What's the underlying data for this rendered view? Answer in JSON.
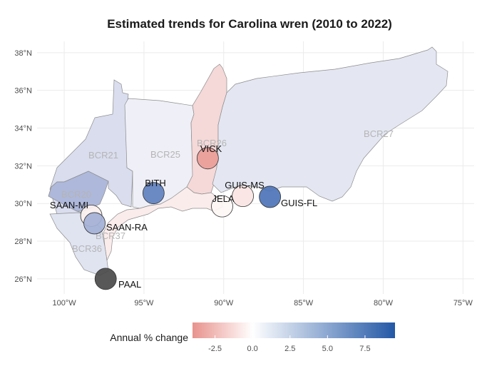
{
  "title": "Estimated trends for Carolina wren (2010 to 2022)",
  "map": {
    "lon_ticks": [
      {
        "value": -100,
        "label": "100°W"
      },
      {
        "value": -95,
        "label": "95°W"
      },
      {
        "value": -90,
        "label": "90°W"
      },
      {
        "value": -85,
        "label": "85°W"
      },
      {
        "value": -80,
        "label": "80°W"
      },
      {
        "value": -75,
        "label": "75°W"
      }
    ],
    "lat_ticks": [
      {
        "value": 26,
        "label": "26°N"
      },
      {
        "value": 28,
        "label": "28°N"
      },
      {
        "value": 30,
        "label": "30°N"
      },
      {
        "value": 32,
        "label": "32°N"
      },
      {
        "value": 34,
        "label": "34°N"
      },
      {
        "value": 36,
        "label": "36°N"
      },
      {
        "value": 38,
        "label": "38°N"
      }
    ],
    "regions": [
      {
        "id": "BCR21",
        "label": "BCR21",
        "color": "#d9ddee"
      },
      {
        "id": "BCR25",
        "label": "BCR25",
        "color": "#eff0f7"
      },
      {
        "id": "BCR26",
        "label": "BCR26",
        "color": "#f5d8d8"
      },
      {
        "id": "BCR27",
        "label": "BCR27",
        "color": "#e4e7f2"
      },
      {
        "id": "BCR20",
        "label": "BCR20",
        "color": "#aeb8da"
      },
      {
        "id": "BCR37",
        "label": "BCR37",
        "color": "#fbecec"
      },
      {
        "id": "BCR36",
        "label": "BCR36",
        "color": "#e0e4f1"
      }
    ],
    "sites": [
      {
        "id": "VICK",
        "label": "VICK",
        "lon": -91.0,
        "lat": 32.4,
        "trend": -2.0,
        "color": "#e99d98"
      },
      {
        "id": "BITH",
        "label": "BITH",
        "lon": -94.4,
        "lat": 30.55,
        "trend": 6.0,
        "color": "#5f81bf"
      },
      {
        "id": "GUIS-MS",
        "label": "GUIS-MS",
        "lon": -88.8,
        "lat": 30.4,
        "trend": -0.5,
        "color": "#f8e4e3"
      },
      {
        "id": "GUIS-FL",
        "label": "GUIS-FL",
        "lon": -87.1,
        "lat": 30.35,
        "trend": 7.0,
        "color": "#4d74b8"
      },
      {
        "id": "JELA",
        "label": "JELA",
        "lon": -90.1,
        "lat": 29.85,
        "trend": 0.0,
        "color": "#fdf6f5"
      },
      {
        "id": "SAAN-MI",
        "label": "SAAN-MI",
        "lon": -98.3,
        "lat": 29.35,
        "trend": 0.0,
        "color": "#fbf0ef"
      },
      {
        "id": "SAAN-RA",
        "label": "SAAN-RA",
        "lon": -98.1,
        "lat": 28.95,
        "trend": 3.5,
        "color": "#a3b0d6"
      },
      {
        "id": "PAAL",
        "label": "PAAL",
        "lon": -97.4,
        "lat": 26.0,
        "trend": null,
        "color": "#4a4a4a"
      }
    ]
  },
  "legend": {
    "title": "Annual % change",
    "min": -4.0,
    "max": 9.5,
    "ticks": [
      {
        "value": -2.5,
        "label": "-2.5"
      },
      {
        "value": 0.0,
        "label": "0.0"
      },
      {
        "value": 2.5,
        "label": "2.5"
      },
      {
        "value": 5.0,
        "label": "5.0"
      },
      {
        "value": 7.5,
        "label": "7.5"
      }
    ],
    "color_low": "#e8928c",
    "color_mid": "#ffffff",
    "color_high": "#2358a6"
  }
}
